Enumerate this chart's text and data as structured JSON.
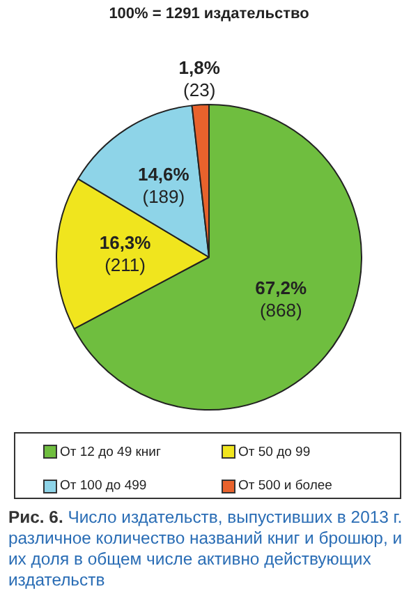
{
  "chart_data": {
    "type": "pie",
    "title": "100% = 1291 издательство",
    "categories": [
      "От 12 до 49 книг",
      "От 50 до 99",
      "От 100 до 499",
      "От 500 и более"
    ],
    "values": [
      868,
      211,
      189,
      23
    ],
    "colors": [
      "#6fbe3f",
      "#f0e51e",
      "#8ed4e8",
      "#e8622c"
    ],
    "value_labels": [
      "67,2%\n(868)",
      "16,3%\n(211)",
      "14,6%\n(189)",
      "1,8%\n(23)"
    ],
    "legend": "bottom",
    "annotations": [
      "Рис. 6.",
      "Число издательств, выпустивших в 2013 г. различное количество названий книг и брошюр, и их доля в общем числе активно действующих издательств"
    ]
  }
}
